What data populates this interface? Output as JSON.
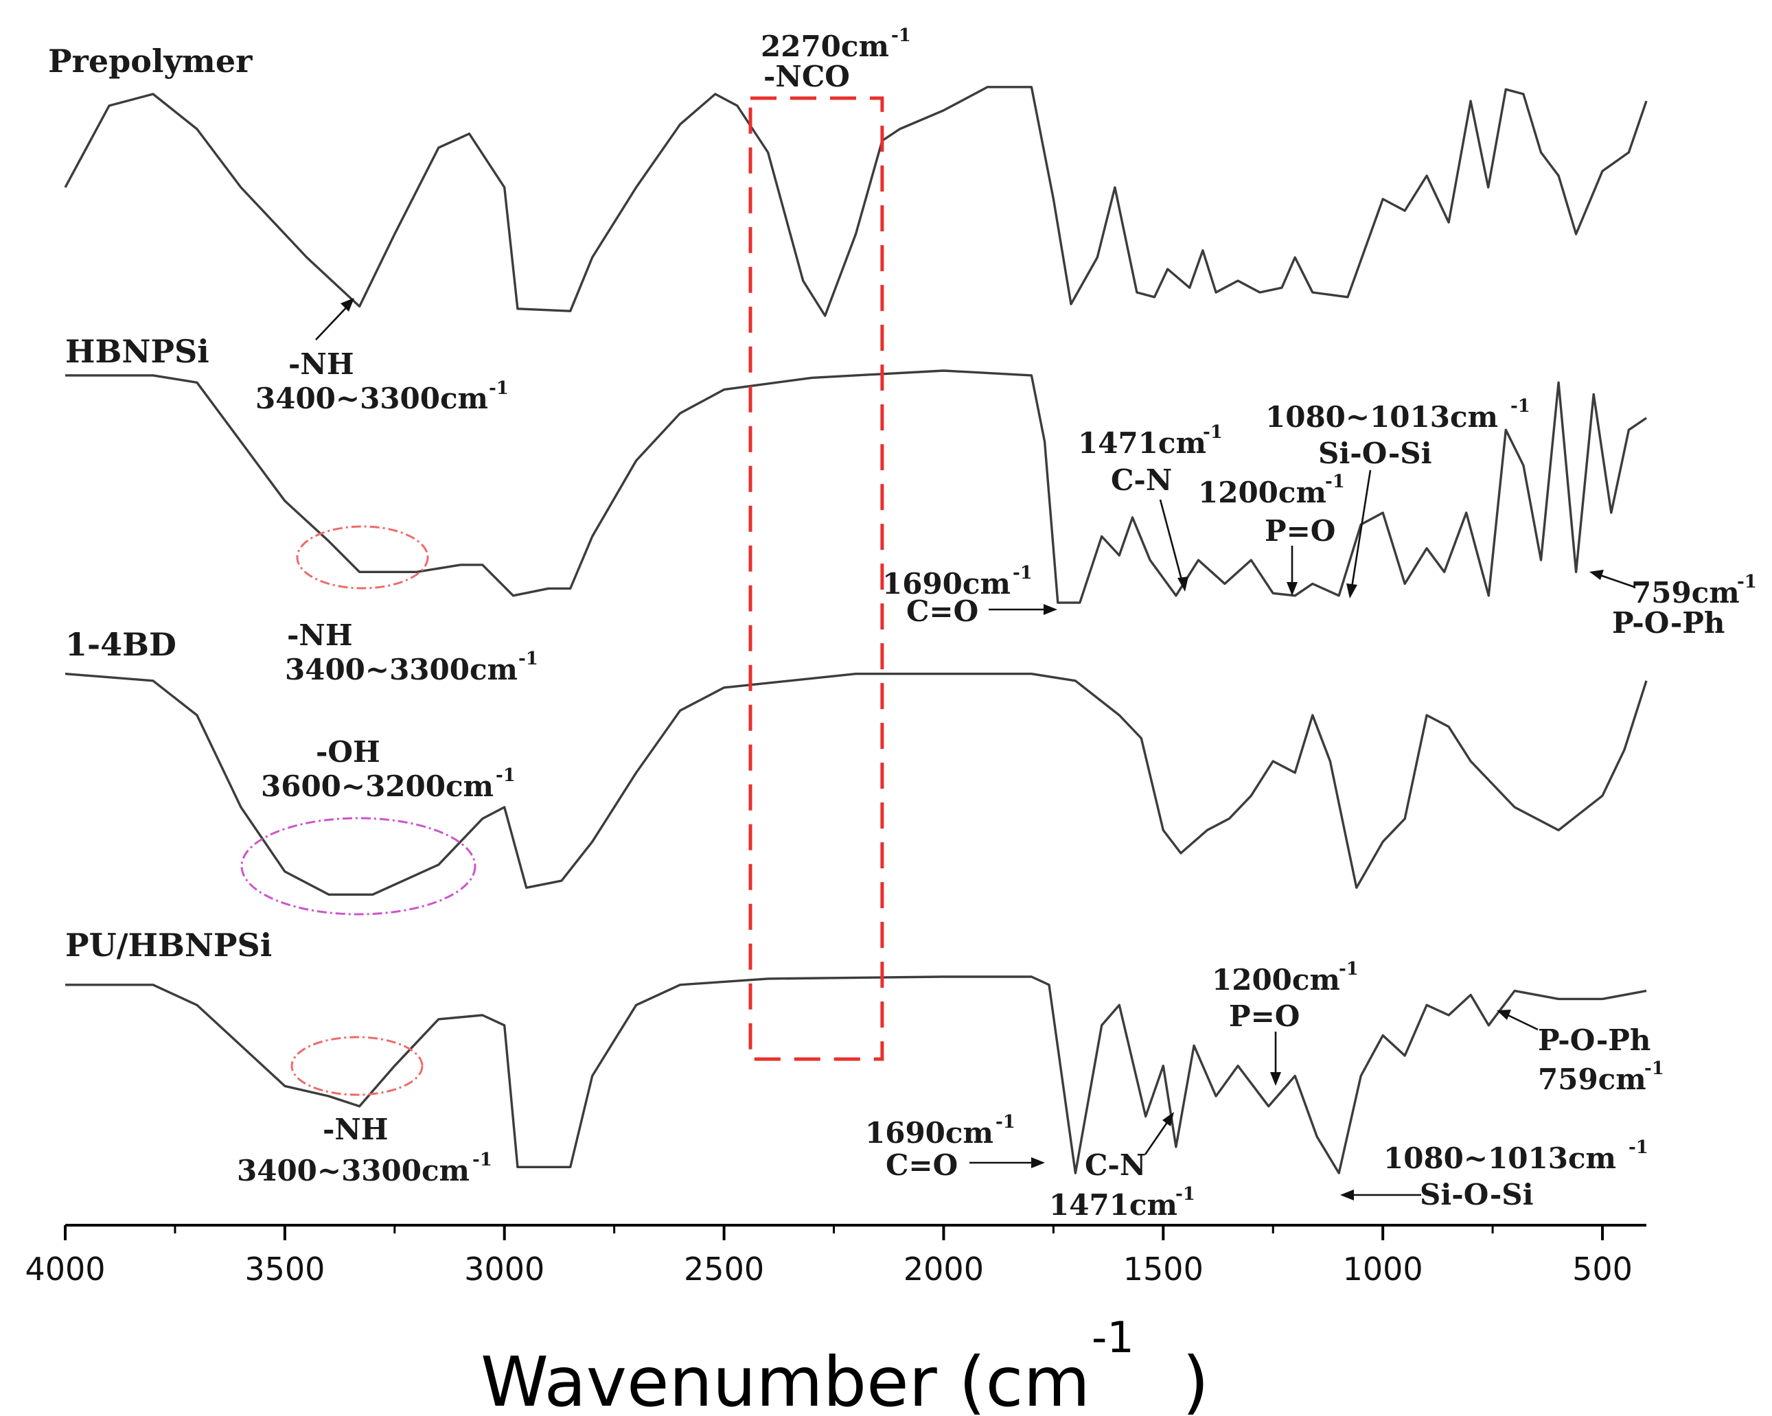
{
  "chart_data": {
    "type": "line",
    "title": "",
    "xlabel": "Wavenumber (cm",
    "xlabel_sup": "-1",
    "xlabel_close": ")",
    "ylabel": "",
    "xlim": [
      4000,
      400
    ],
    "x_ticks": [
      4000,
      3500,
      3000,
      2500,
      2000,
      1500,
      1000,
      500
    ],
    "y_axis_visible": false,
    "series": [
      {
        "name": "Prepolymer",
        "values_relative_transmittance": [
          [
            4000,
            0.55
          ],
          [
            3900,
            0.9
          ],
          [
            3800,
            0.95
          ],
          [
            3700,
            0.8
          ],
          [
            3600,
            0.55
          ],
          [
            3500,
            0.35
          ],
          [
            3450,
            0.25
          ],
          [
            3330,
            0.04
          ],
          [
            3250,
            0.35
          ],
          [
            3150,
            0.72
          ],
          [
            3080,
            0.78
          ],
          [
            3000,
            0.55
          ],
          [
            2970,
            0.03
          ],
          [
            2850,
            0.02
          ],
          [
            2800,
            0.25
          ],
          [
            2700,
            0.55
          ],
          [
            2600,
            0.82
          ],
          [
            2520,
            0.95
          ],
          [
            2470,
            0.9
          ],
          [
            2400,
            0.7
          ],
          [
            2320,
            0.15
          ],
          [
            2270,
            0.0
          ],
          [
            2200,
            0.35
          ],
          [
            2140,
            0.75
          ],
          [
            2100,
            0.8
          ],
          [
            2000,
            0.88
          ],
          [
            1900,
            0.98
          ],
          [
            1800,
            0.98
          ],
          [
            1750,
            0.5
          ],
          [
            1710,
            0.05
          ],
          [
            1650,
            0.25
          ],
          [
            1610,
            0.55
          ],
          [
            1560,
            0.1
          ],
          [
            1520,
            0.08
          ],
          [
            1490,
            0.2
          ],
          [
            1440,
            0.12
          ],
          [
            1410,
            0.28
          ],
          [
            1380,
            0.1
          ],
          [
            1330,
            0.15
          ],
          [
            1280,
            0.1
          ],
          [
            1230,
            0.12
          ],
          [
            1200,
            0.25
          ],
          [
            1160,
            0.1
          ],
          [
            1080,
            0.08
          ],
          [
            1000,
            0.5
          ],
          [
            950,
            0.45
          ],
          [
            900,
            0.6
          ],
          [
            850,
            0.4
          ],
          [
            800,
            0.92
          ],
          [
            760,
            0.55
          ],
          [
            720,
            0.97
          ],
          [
            680,
            0.95
          ],
          [
            640,
            0.7
          ],
          [
            600,
            0.6
          ],
          [
            560,
            0.35
          ],
          [
            500,
            0.62
          ],
          [
            440,
            0.7
          ],
          [
            400,
            0.92
          ]
        ],
        "annotations": [
          {
            "text": "2270cm",
            "sup": "-1"
          },
          {
            "text": "-NCO"
          },
          {
            "text": "-NH"
          },
          {
            "text": "3400~3300cm",
            "sup": "-1"
          }
        ]
      },
      {
        "name": "HBNPSi",
        "values_relative_transmittance": [
          [
            4000,
            0.98
          ],
          [
            3800,
            0.98
          ],
          [
            3700,
            0.95
          ],
          [
            3600,
            0.7
          ],
          [
            3500,
            0.45
          ],
          [
            3400,
            0.28
          ],
          [
            3330,
            0.15
          ],
          [
            3200,
            0.15
          ],
          [
            3100,
            0.18
          ],
          [
            3050,
            0.18
          ],
          [
            2980,
            0.05
          ],
          [
            2900,
            0.08
          ],
          [
            2850,
            0.08
          ],
          [
            2800,
            0.3
          ],
          [
            2700,
            0.62
          ],
          [
            2600,
            0.82
          ],
          [
            2500,
            0.92
          ],
          [
            2300,
            0.97
          ],
          [
            2000,
            1.0
          ],
          [
            1800,
            0.98
          ],
          [
            1770,
            0.7
          ],
          [
            1740,
            0.02
          ],
          [
            1690,
            0.02
          ],
          [
            1640,
            0.3
          ],
          [
            1600,
            0.22
          ],
          [
            1570,
            0.38
          ],
          [
            1530,
            0.2
          ],
          [
            1471,
            0.05
          ],
          [
            1420,
            0.2
          ],
          [
            1360,
            0.1
          ],
          [
            1300,
            0.2
          ],
          [
            1250,
            0.06
          ],
          [
            1200,
            0.05
          ],
          [
            1160,
            0.1
          ],
          [
            1100,
            0.05
          ],
          [
            1050,
            0.35
          ],
          [
            1000,
            0.4
          ],
          [
            950,
            0.1
          ],
          [
            900,
            0.25
          ],
          [
            860,
            0.15
          ],
          [
            810,
            0.4
          ],
          [
            759,
            0.05
          ],
          [
            720,
            0.75
          ],
          [
            680,
            0.6
          ],
          [
            640,
            0.2
          ],
          [
            600,
            0.95
          ],
          [
            560,
            0.15
          ],
          [
            520,
            0.9
          ],
          [
            480,
            0.4
          ],
          [
            440,
            0.75
          ],
          [
            400,
            0.8
          ]
        ],
        "annotations": [
          {
            "text": "-NH"
          },
          {
            "text": "3400~3300cm",
            "sup": "-1"
          },
          {
            "text": "1471cm",
            "sup": "-1"
          },
          {
            "text": "C-N"
          },
          {
            "text": "1200cm",
            "sup": "-1"
          },
          {
            "text": "P=O"
          },
          {
            "text": "1080~1013cm",
            "sup": "-1"
          },
          {
            "text": "Si-O-Si"
          },
          {
            "text": "1690cm",
            "sup": "-1"
          },
          {
            "text": "C=O"
          },
          {
            "text": "759cm",
            "sup": "-1"
          },
          {
            "text": "P-O-Ph"
          }
        ]
      },
      {
        "name": "1-4BD",
        "values_relative_transmittance": [
          [
            4000,
            0.98
          ],
          [
            3800,
            0.95
          ],
          [
            3700,
            0.8
          ],
          [
            3600,
            0.4
          ],
          [
            3500,
            0.12
          ],
          [
            3400,
            0.02
          ],
          [
            3300,
            0.02
          ],
          [
            3150,
            0.15
          ],
          [
            3050,
            0.35
          ],
          [
            3000,
            0.4
          ],
          [
            2950,
            0.05
          ],
          [
            2870,
            0.08
          ],
          [
            2800,
            0.25
          ],
          [
            2700,
            0.55
          ],
          [
            2600,
            0.82
          ],
          [
            2500,
            0.92
          ],
          [
            2200,
            0.98
          ],
          [
            2000,
            0.98
          ],
          [
            1800,
            0.98
          ],
          [
            1700,
            0.95
          ],
          [
            1600,
            0.8
          ],
          [
            1550,
            0.7
          ],
          [
            1500,
            0.3
          ],
          [
            1460,
            0.2
          ],
          [
            1400,
            0.3
          ],
          [
            1350,
            0.35
          ],
          [
            1300,
            0.45
          ],
          [
            1250,
            0.6
          ],
          [
            1200,
            0.55
          ],
          [
            1160,
            0.8
          ],
          [
            1120,
            0.6
          ],
          [
            1060,
            0.05
          ],
          [
            1000,
            0.25
          ],
          [
            950,
            0.35
          ],
          [
            900,
            0.8
          ],
          [
            850,
            0.75
          ],
          [
            800,
            0.6
          ],
          [
            700,
            0.4
          ],
          [
            600,
            0.3
          ],
          [
            500,
            0.45
          ],
          [
            450,
            0.65
          ],
          [
            400,
            0.95
          ]
        ],
        "annotations": [
          {
            "text": "-OH"
          },
          {
            "text": "3600~3200cm",
            "sup": "-1"
          }
        ]
      },
      {
        "name": "PU/HBNPSi",
        "values_relative_transmittance": [
          [
            4000,
            0.95
          ],
          [
            3800,
            0.95
          ],
          [
            3700,
            0.85
          ],
          [
            3600,
            0.65
          ],
          [
            3500,
            0.45
          ],
          [
            3400,
            0.4
          ],
          [
            3330,
            0.35
          ],
          [
            3250,
            0.55
          ],
          [
            3150,
            0.78
          ],
          [
            3050,
            0.8
          ],
          [
            3000,
            0.75
          ],
          [
            2970,
            0.05
          ],
          [
            2850,
            0.05
          ],
          [
            2800,
            0.5
          ],
          [
            2700,
            0.85
          ],
          [
            2600,
            0.95
          ],
          [
            2400,
            0.98
          ],
          [
            2000,
            0.99
          ],
          [
            1800,
            0.99
          ],
          [
            1760,
            0.95
          ],
          [
            1700,
            0.02
          ],
          [
            1640,
            0.75
          ],
          [
            1600,
            0.85
          ],
          [
            1540,
            0.3
          ],
          [
            1500,
            0.55
          ],
          [
            1471,
            0.15
          ],
          [
            1430,
            0.65
          ],
          [
            1380,
            0.4
          ],
          [
            1330,
            0.55
          ],
          [
            1260,
            0.35
          ],
          [
            1200,
            0.5
          ],
          [
            1150,
            0.2
          ],
          [
            1100,
            0.02
          ],
          [
            1050,
            0.5
          ],
          [
            1000,
            0.7
          ],
          [
            950,
            0.6
          ],
          [
            900,
            0.85
          ],
          [
            850,
            0.8
          ],
          [
            800,
            0.9
          ],
          [
            759,
            0.75
          ],
          [
            700,
            0.92
          ],
          [
            600,
            0.88
          ],
          [
            500,
            0.88
          ],
          [
            400,
            0.92
          ]
        ],
        "annotations": [
          {
            "text": "-NH"
          },
          {
            "text": "3400~3300cm",
            "sup": "-1"
          },
          {
            "text": "1200cm",
            "sup": "-1"
          },
          {
            "text": "P=O"
          },
          {
            "text": "P-O-Ph"
          },
          {
            "text": "759cm",
            "sup": "-1"
          },
          {
            "text": "1690cm",
            "sup": "-1"
          },
          {
            "text": "C=O"
          },
          {
            "text": "C-N"
          },
          {
            "text": "1471cm",
            "sup": "-1"
          },
          {
            "text": "1080~1013cm",
            "sup": "-1"
          },
          {
            "text": "Si-O-Si"
          }
        ]
      }
    ],
    "highlight_band": {
      "from": 2440,
      "to": 2140,
      "color": "#e8302e",
      "label": "-NCO"
    }
  },
  "colors": {
    "trace": "#3c3c3c",
    "highlight_box": "#e8302e",
    "nh_circle": "#f06a6a",
    "oh_circle": "#cc55cc",
    "axis": "#000000"
  }
}
